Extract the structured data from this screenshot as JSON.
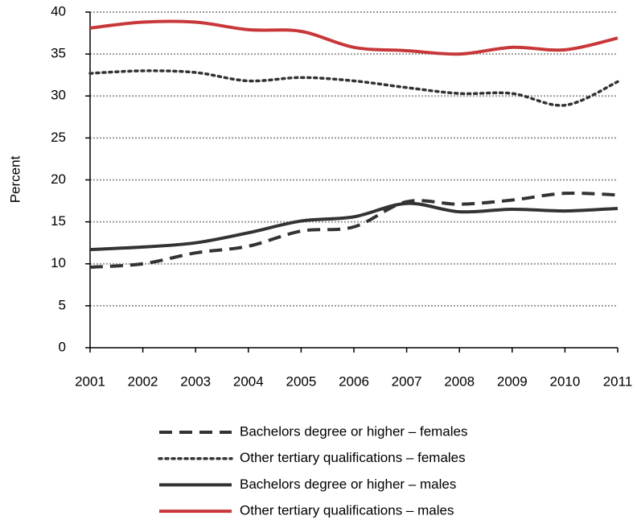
{
  "chart_data": {
    "type": "line",
    "y_label": "Percent",
    "x": [
      2001,
      2002,
      2003,
      2004,
      2005,
      2006,
      2007,
      2008,
      2009,
      2010,
      2011
    ],
    "xlim": [
      2001,
      2011
    ],
    "xticks": [
      2001,
      2002,
      2003,
      2004,
      2005,
      2006,
      2007,
      2008,
      2009,
      2010,
      2011
    ],
    "ylim": [
      0,
      40
    ],
    "yticks": [
      0,
      5,
      10,
      15,
      20,
      25,
      30,
      35,
      40
    ],
    "grid": true,
    "legend": "bottom",
    "series": [
      {
        "name": "Bachelors degree or higher – females",
        "color": "#333333",
        "linestyle": "dashed",
        "values": [
          9.6,
          10.0,
          11.3,
          12.1,
          13.9,
          14.4,
          17.4,
          17.1,
          17.6,
          18.4,
          18.2
        ]
      },
      {
        "name": "Other tertiary qualifications – females",
        "color": "#333333",
        "linestyle": "dotted",
        "values": [
          32.7,
          33.0,
          32.8,
          31.8,
          32.2,
          31.8,
          31.0,
          30.3,
          30.3,
          28.9,
          31.7
        ]
      },
      {
        "name": "Bachelors degree or higher – males",
        "color": "#333333",
        "linestyle": "solid",
        "values": [
          11.7,
          12.0,
          12.5,
          13.7,
          15.1,
          15.6,
          17.2,
          16.2,
          16.5,
          16.3,
          16.6
        ]
      },
      {
        "name": "Other tertiary qualifications – males",
        "color": "#c8373a",
        "linestyle": "solid",
        "values": [
          38.1,
          38.8,
          38.8,
          37.9,
          37.7,
          35.8,
          35.4,
          35.0,
          35.8,
          35.5,
          36.9
        ]
      }
    ]
  }
}
